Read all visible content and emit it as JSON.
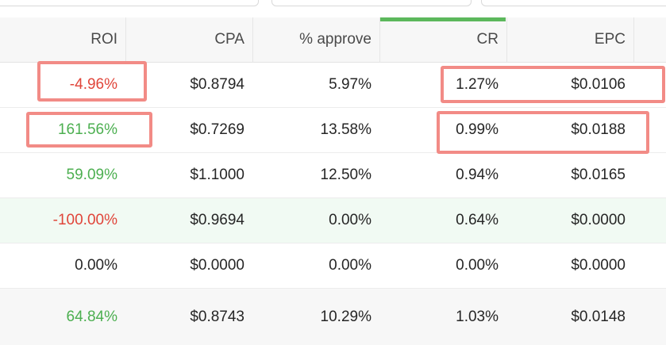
{
  "columns": {
    "roi": "ROI",
    "cpa": "CPA",
    "approve": "% approve",
    "cr": "CR",
    "epc": "EPC"
  },
  "rows": [
    {
      "roi": "-4.96%",
      "roi_status": "negative",
      "cpa": "$0.8794",
      "approve": "5.97%",
      "cr": "1.27%",
      "epc": "$0.0106"
    },
    {
      "roi": "161.56%",
      "roi_status": "positive",
      "cpa": "$0.7269",
      "approve": "13.58%",
      "cr": "0.99%",
      "epc": "$0.0188"
    },
    {
      "roi": "59.09%",
      "roi_status": "positive",
      "cpa": "$1.1000",
      "approve": "12.50%",
      "cr": "0.94%",
      "epc": "$0.0165"
    },
    {
      "roi": "-100.00%",
      "roi_status": "negative",
      "cpa": "$0.9694",
      "approve": "0.00%",
      "cr": "0.64%",
      "epc": "$0.0000"
    },
    {
      "roi": "0.00%",
      "roi_status": "neutral",
      "cpa": "$0.0000",
      "approve": "0.00%",
      "cr": "0.00%",
      "epc": "$0.0000"
    }
  ],
  "totals": {
    "roi": "64.84%",
    "roi_status": "positive",
    "cpa": "$0.8743",
    "approve": "10.29%",
    "cr": "1.03%",
    "epc": "$0.0148"
  },
  "colors": {
    "negative": "#e0453a",
    "positive": "#4caf50",
    "sorted_column_accent": "#5cb85c",
    "highlight_box": "#f28b86",
    "hover_row": "#f1faf3"
  },
  "sorted_column": "cr"
}
